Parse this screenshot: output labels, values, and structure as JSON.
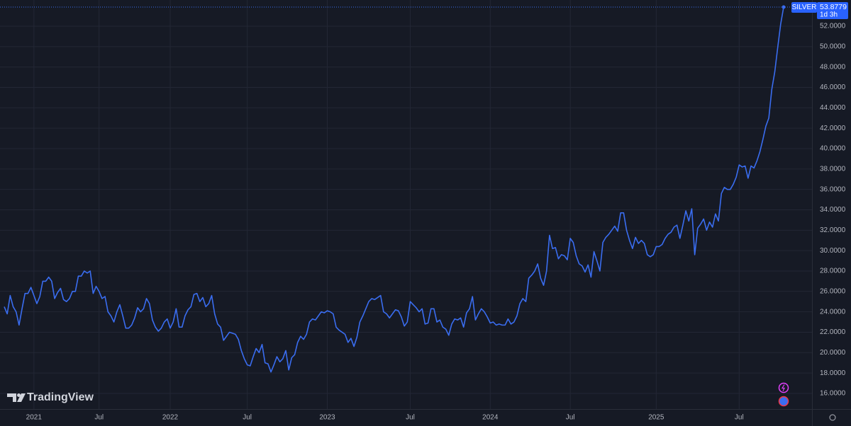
{
  "chart_data": {
    "type": "line",
    "symbol": "SILVER",
    "countdown": "1d 3h",
    "watermark": "TradingView",
    "categories": [
      null,
      null,
      null,
      null,
      null,
      null,
      null,
      null,
      null,
      null,
      "2021",
      null,
      null,
      null,
      null,
      null,
      null,
      null,
      null,
      null,
      null,
      null,
      null,
      null,
      null,
      null,
      null,
      null,
      null,
      null,
      null,
      null,
      "Jul",
      null,
      null,
      null,
      null,
      null,
      null,
      null,
      null,
      null,
      null,
      null,
      null,
      null,
      null,
      null,
      null,
      null,
      null,
      null,
      null,
      null,
      null,
      null,
      "2022",
      null,
      null,
      null,
      null,
      null,
      null,
      null,
      null,
      null,
      null,
      null,
      null,
      null,
      null,
      null,
      null,
      null,
      null,
      null,
      null,
      null,
      null,
      null,
      null,
      null,
      "Jul",
      null,
      null,
      null,
      null,
      null,
      null,
      null,
      null,
      null,
      null,
      null,
      null,
      null,
      null,
      null,
      null,
      null,
      null,
      null,
      null,
      null,
      null,
      null,
      null,
      null,
      null,
      "2023",
      null,
      null,
      null,
      null,
      null,
      null,
      null,
      null,
      null,
      null,
      null,
      null,
      null,
      null,
      null,
      null,
      null,
      null,
      null,
      null,
      null,
      null,
      null,
      null,
      null,
      null,
      null,
      "Jul",
      null,
      null,
      null,
      null,
      null,
      null,
      null,
      null,
      null,
      null,
      null,
      null,
      null,
      null,
      null,
      null,
      null,
      null,
      null,
      null,
      null,
      null,
      null,
      null,
      null,
      null,
      "2024",
      null,
      null,
      null,
      null,
      null,
      null,
      null,
      null,
      null,
      null,
      null,
      null,
      null,
      null,
      null,
      null,
      null,
      null,
      null,
      null,
      null,
      null,
      null,
      null,
      null,
      null,
      "Jul",
      null,
      null,
      null,
      null,
      null,
      null,
      null,
      null,
      null,
      null,
      null,
      null,
      null,
      null,
      null,
      null,
      null,
      null,
      null,
      null,
      null,
      null,
      null,
      null,
      null,
      null,
      null,
      null,
      "2025",
      null,
      null,
      null,
      null,
      null,
      null,
      null,
      null,
      null,
      null,
      null,
      null,
      null,
      null,
      null,
      null,
      null,
      null,
      null,
      null,
      null,
      null,
      null,
      null,
      null,
      null,
      null,
      "Jul",
      null,
      null,
      null,
      null,
      null,
      null,
      null,
      null,
      null,
      null,
      null,
      null,
      null,
      null,
      null
    ],
    "series": [
      {
        "name": "SILVER",
        "color": "#3a6df0",
        "values": [
          24.5,
          23.8,
          25.6,
          24.5,
          24.0,
          22.7,
          24.3,
          25.8,
          25.8,
          26.4,
          25.6,
          24.8,
          25.5,
          27.0,
          27.0,
          27.4,
          27.0,
          25.3,
          25.9,
          26.3,
          25.2,
          25.0,
          25.3,
          26.0,
          26.0,
          27.5,
          27.5,
          28.0,
          27.8,
          28.0,
          25.8,
          26.5,
          26.0,
          25.3,
          25.5,
          24.0,
          23.6,
          23.0,
          24.0,
          24.7,
          23.6,
          22.4,
          22.4,
          22.7,
          23.4,
          24.4,
          24.0,
          24.3,
          25.3,
          24.8,
          23.2,
          22.5,
          22.1,
          22.4,
          23.0,
          23.3,
          22.4,
          23.0,
          24.3,
          22.5,
          22.5,
          23.6,
          24.2,
          24.5,
          25.7,
          25.8,
          25.0,
          25.4,
          24.5,
          24.8,
          25.6,
          23.8,
          22.8,
          22.5,
          21.2,
          21.6,
          22.0,
          21.9,
          21.8,
          21.3,
          20.2,
          19.4,
          18.8,
          18.7,
          19.6,
          20.4,
          20.0,
          20.8,
          19.0,
          18.9,
          18.1,
          18.8,
          19.6,
          19.1,
          19.4,
          20.2,
          18.3,
          19.5,
          19.8,
          21.0,
          21.6,
          21.3,
          21.8,
          23.0,
          23.3,
          23.2,
          23.6,
          24.0,
          23.9,
          24.1,
          24.0,
          23.8,
          22.5,
          22.2,
          22.0,
          21.8,
          21.0,
          21.4,
          20.6,
          21.5,
          23.0,
          23.6,
          24.3,
          25.0,
          25.3,
          25.2,
          25.4,
          25.6,
          24.0,
          23.8,
          23.4,
          23.8,
          24.2,
          24.1,
          23.5,
          22.6,
          23.0,
          25.0,
          24.7,
          24.4,
          24.0,
          24.3,
          22.8,
          22.9,
          24.3,
          24.3,
          23.0,
          23.2,
          22.5,
          22.3,
          21.7,
          22.8,
          23.3,
          23.2,
          23.4,
          22.5,
          23.9,
          24.3,
          25.5,
          23.2,
          23.8,
          24.3,
          24.0,
          23.5,
          22.9,
          23.0,
          22.7,
          22.8,
          22.7,
          22.7,
          23.3,
          22.8,
          23.0,
          23.6,
          24.8,
          25.3,
          25.0,
          27.3,
          27.6,
          28.0,
          28.7,
          27.3,
          26.6,
          28.0,
          31.5,
          30.2,
          30.3,
          29.2,
          29.6,
          29.5,
          29.1,
          31.2,
          30.8,
          29.5,
          28.7,
          28.5,
          27.9,
          28.6,
          27.4,
          29.9,
          29.0,
          28.0,
          30.8,
          31.3,
          31.6,
          32.0,
          32.4,
          31.9,
          33.7,
          33.7,
          32.0,
          31.0,
          30.2,
          31.3,
          30.7,
          31.0,
          30.7,
          29.6,
          29.4,
          29.6,
          30.4,
          30.4,
          30.6,
          31.2,
          31.6,
          31.8,
          32.3,
          32.5,
          31.2,
          32.5,
          33.9,
          32.9,
          34.1,
          29.6,
          32.2,
          32.6,
          33.1,
          32.0,
          32.8,
          32.3,
          33.6,
          32.9,
          35.6,
          36.2,
          36.0,
          36.0,
          36.5,
          37.2,
          38.4,
          38.2,
          38.3,
          37.1,
          38.3,
          38.1,
          38.8,
          39.7,
          40.9,
          42.2,
          43.0,
          45.8,
          47.5,
          49.9,
          52.2,
          53.8779
        ]
      }
    ],
    "ylim": [
      14.47,
      54.57
    ],
    "yticks": [
      {
        "value": 16,
        "label": "16.0000"
      },
      {
        "value": 18,
        "label": "18.0000"
      },
      {
        "value": 20,
        "label": "20.0000"
      },
      {
        "value": 22,
        "label": "22.0000"
      },
      {
        "value": 24,
        "label": "24.0000"
      },
      {
        "value": 26,
        "label": "26.0000"
      },
      {
        "value": 28,
        "label": "28.0000"
      },
      {
        "value": 30,
        "label": "30.0000"
      },
      {
        "value": 32,
        "label": "32.0000"
      },
      {
        "value": 34,
        "label": "34.0000"
      },
      {
        "value": 36,
        "label": "36.0000"
      },
      {
        "value": 38,
        "label": "38.0000"
      },
      {
        "value": 40,
        "label": "40.0000"
      },
      {
        "value": 42,
        "label": "42.0000"
      },
      {
        "value": 44,
        "label": "44.0000"
      },
      {
        "value": 46,
        "label": "46.0000"
      },
      {
        "value": 48,
        "label": "48.0000"
      },
      {
        "value": 50,
        "label": "50.0000"
      },
      {
        "value": 52,
        "label": "52.0000"
      }
    ],
    "grid": true
  }
}
